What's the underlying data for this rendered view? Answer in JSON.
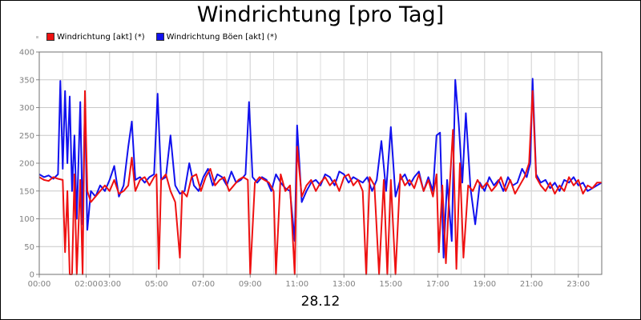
{
  "chart_data": {
    "type": "line",
    "title": "Windrichtung [pro Tag]",
    "xlabel": "28.12",
    "ylabel": "",
    "ylim": [
      0,
      400
    ],
    "y_ticks": [
      "0",
      "50",
      "100",
      "150",
      "200",
      "250",
      "300",
      "350",
      "400"
    ],
    "x_ticks": [
      "00:00",
      "02:00",
      "03:00",
      "05:00",
      "07:00",
      "09:00",
      "11:00",
      "13:00",
      "15:00",
      "17:00",
      "19:00",
      "21:00",
      "23:00"
    ],
    "grid": true,
    "legend_position": "top-left",
    "series": [
      {
        "name": "Windrichtung [akt] (*)",
        "color": "#ee1111",
        "points": [
          [
            0.0,
            175
          ],
          [
            0.2,
            170
          ],
          [
            0.4,
            168
          ],
          [
            0.6,
            175
          ],
          [
            0.8,
            172
          ],
          [
            1.0,
            170
          ],
          [
            1.1,
            40
          ],
          [
            1.2,
            150
          ],
          [
            1.3,
            0
          ],
          [
            1.4,
            0
          ],
          [
            1.5,
            180
          ],
          [
            1.6,
            0
          ],
          [
            1.75,
            170
          ],
          [
            1.85,
            0
          ],
          [
            1.95,
            330
          ],
          [
            2.05,
            150
          ],
          [
            2.2,
            130
          ],
          [
            2.4,
            140
          ],
          [
            2.6,
            150
          ],
          [
            2.8,
            160
          ],
          [
            3.0,
            150
          ],
          [
            3.2,
            170
          ],
          [
            3.4,
            145
          ],
          [
            3.6,
            150
          ],
          [
            3.8,
            160
          ],
          [
            3.95,
            210
          ],
          [
            4.1,
            150
          ],
          [
            4.3,
            170
          ],
          [
            4.5,
            175
          ],
          [
            4.7,
            160
          ],
          [
            4.9,
            175
          ],
          [
            5.0,
            180
          ],
          [
            5.1,
            10
          ],
          [
            5.2,
            170
          ],
          [
            5.4,
            180
          ],
          [
            5.6,
            150
          ],
          [
            5.8,
            130
          ],
          [
            6.0,
            30
          ],
          [
            6.1,
            150
          ],
          [
            6.3,
            140
          ],
          [
            6.5,
            175
          ],
          [
            6.7,
            180
          ],
          [
            6.9,
            150
          ],
          [
            7.1,
            175
          ],
          [
            7.3,
            190
          ],
          [
            7.5,
            160
          ],
          [
            7.7,
            170
          ],
          [
            7.9,
            175
          ],
          [
            8.1,
            150
          ],
          [
            8.3,
            160
          ],
          [
            8.5,
            170
          ],
          [
            8.7,
            175
          ],
          [
            8.9,
            170
          ],
          [
            9.0,
            0
          ],
          [
            9.2,
            165
          ],
          [
            9.4,
            175
          ],
          [
            9.6,
            170
          ],
          [
            9.8,
            165
          ],
          [
            10.0,
            150
          ],
          [
            10.1,
            0
          ],
          [
            10.3,
            180
          ],
          [
            10.5,
            150
          ],
          [
            10.7,
            160
          ],
          [
            10.9,
            0
          ],
          [
            11.0,
            230
          ],
          [
            11.2,
            140
          ],
          [
            11.4,
            160
          ],
          [
            11.6,
            170
          ],
          [
            11.8,
            150
          ],
          [
            12.0,
            165
          ],
          [
            12.2,
            175
          ],
          [
            12.4,
            160
          ],
          [
            12.6,
            170
          ],
          [
            12.8,
            150
          ],
          [
            13.0,
            175
          ],
          [
            13.2,
            180
          ],
          [
            13.4,
            160
          ],
          [
            13.6,
            170
          ],
          [
            13.8,
            150
          ],
          [
            13.95,
            0
          ],
          [
            14.1,
            175
          ],
          [
            14.3,
            160
          ],
          [
            14.5,
            0
          ],
          [
            14.7,
            170
          ],
          [
            14.85,
            0
          ],
          [
            15.0,
            170
          ],
          [
            15.2,
            0
          ],
          [
            15.4,
            180
          ],
          [
            15.6,
            160
          ],
          [
            15.8,
            170
          ],
          [
            16.0,
            155
          ],
          [
            16.2,
            180
          ],
          [
            16.4,
            150
          ],
          [
            16.6,
            170
          ],
          [
            16.8,
            140
          ],
          [
            16.95,
            180
          ],
          [
            17.05,
            40
          ],
          [
            17.2,
            160
          ],
          [
            17.35,
            20
          ],
          [
            17.5,
            150
          ],
          [
            17.65,
            260
          ],
          [
            17.8,
            10
          ],
          [
            17.95,
            200
          ],
          [
            18.1,
            30
          ],
          [
            18.3,
            160
          ],
          [
            18.5,
            150
          ],
          [
            18.7,
            170
          ],
          [
            18.9,
            155
          ],
          [
            19.1,
            165
          ],
          [
            19.3,
            150
          ],
          [
            19.5,
            160
          ],
          [
            19.7,
            175
          ],
          [
            19.9,
            150
          ],
          [
            20.1,
            170
          ],
          [
            20.3,
            145
          ],
          [
            20.5,
            160
          ],
          [
            20.7,
            175
          ],
          [
            20.9,
            200
          ],
          [
            21.05,
            330
          ],
          [
            21.2,
            175
          ],
          [
            21.4,
            160
          ],
          [
            21.6,
            150
          ],
          [
            21.8,
            165
          ],
          [
            22.0,
            145
          ],
          [
            22.2,
            160
          ],
          [
            22.4,
            150
          ],
          [
            22.6,
            175
          ],
          [
            22.8,
            160
          ],
          [
            23.0,
            170
          ],
          [
            23.2,
            145
          ],
          [
            23.4,
            160
          ],
          [
            23.6,
            155
          ],
          [
            23.8,
            165
          ],
          [
            24.0,
            165
          ]
        ]
      },
      {
        "name": "Windrichtung Böen [akt] (*)",
        "color": "#1111ee",
        "points": [
          [
            0.0,
            180
          ],
          [
            0.2,
            175
          ],
          [
            0.4,
            178
          ],
          [
            0.6,
            172
          ],
          [
            0.8,
            180
          ],
          [
            0.9,
            348
          ],
          [
            1.0,
            190
          ],
          [
            1.1,
            330
          ],
          [
            1.2,
            200
          ],
          [
            1.3,
            320
          ],
          [
            1.4,
            150
          ],
          [
            1.5,
            250
          ],
          [
            1.6,
            100
          ],
          [
            1.75,
            310
          ],
          [
            1.85,
            90
          ],
          [
            1.95,
            310
          ],
          [
            2.05,
            80
          ],
          [
            2.2,
            150
          ],
          [
            2.4,
            140
          ],
          [
            2.6,
            160
          ],
          [
            2.8,
            150
          ],
          [
            3.0,
            170
          ],
          [
            3.2,
            195
          ],
          [
            3.4,
            140
          ],
          [
            3.6,
            160
          ],
          [
            3.8,
            230
          ],
          [
            3.95,
            275
          ],
          [
            4.1,
            170
          ],
          [
            4.3,
            175
          ],
          [
            4.5,
            165
          ],
          [
            4.7,
            175
          ],
          [
            4.9,
            180
          ],
          [
            5.05,
            325
          ],
          [
            5.2,
            170
          ],
          [
            5.4,
            175
          ],
          [
            5.6,
            250
          ],
          [
            5.8,
            160
          ],
          [
            6.0,
            145
          ],
          [
            6.2,
            150
          ],
          [
            6.4,
            200
          ],
          [
            6.6,
            160
          ],
          [
            6.8,
            150
          ],
          [
            7.0,
            175
          ],
          [
            7.2,
            190
          ],
          [
            7.4,
            160
          ],
          [
            7.6,
            180
          ],
          [
            7.8,
            175
          ],
          [
            8.0,
            160
          ],
          [
            8.2,
            185
          ],
          [
            8.4,
            165
          ],
          [
            8.6,
            170
          ],
          [
            8.8,
            180
          ],
          [
            8.95,
            310
          ],
          [
            9.1,
            175
          ],
          [
            9.3,
            165
          ],
          [
            9.5,
            175
          ],
          [
            9.7,
            170
          ],
          [
            9.9,
            150
          ],
          [
            10.1,
            180
          ],
          [
            10.3,
            165
          ],
          [
            10.5,
            155
          ],
          [
            10.7,
            150
          ],
          [
            10.9,
            60
          ],
          [
            11.0,
            268
          ],
          [
            11.2,
            130
          ],
          [
            11.4,
            150
          ],
          [
            11.6,
            165
          ],
          [
            11.8,
            170
          ],
          [
            12.0,
            160
          ],
          [
            12.2,
            180
          ],
          [
            12.4,
            175
          ],
          [
            12.6,
            160
          ],
          [
            12.8,
            185
          ],
          [
            13.0,
            180
          ],
          [
            13.2,
            165
          ],
          [
            13.4,
            175
          ],
          [
            13.6,
            170
          ],
          [
            13.8,
            165
          ],
          [
            14.0,
            175
          ],
          [
            14.2,
            150
          ],
          [
            14.4,
            170
          ],
          [
            14.6,
            240
          ],
          [
            14.8,
            150
          ],
          [
            15.0,
            265
          ],
          [
            15.2,
            140
          ],
          [
            15.4,
            170
          ],
          [
            15.6,
            180
          ],
          [
            15.8,
            160
          ],
          [
            16.0,
            175
          ],
          [
            16.2,
            185
          ],
          [
            16.4,
            150
          ],
          [
            16.6,
            175
          ],
          [
            16.8,
            150
          ],
          [
            16.95,
            250
          ],
          [
            17.1,
            255
          ],
          [
            17.25,
            30
          ],
          [
            17.4,
            170
          ],
          [
            17.6,
            60
          ],
          [
            17.75,
            350
          ],
          [
            17.9,
            270
          ],
          [
            18.05,
            165
          ],
          [
            18.2,
            290
          ],
          [
            18.4,
            155
          ],
          [
            18.6,
            90
          ],
          [
            18.8,
            165
          ],
          [
            19.0,
            150
          ],
          [
            19.2,
            175
          ],
          [
            19.4,
            160
          ],
          [
            19.6,
            170
          ],
          [
            19.8,
            150
          ],
          [
            20.0,
            175
          ],
          [
            20.2,
            160
          ],
          [
            20.4,
            165
          ],
          [
            20.6,
            190
          ],
          [
            20.8,
            175
          ],
          [
            20.95,
            200
          ],
          [
            21.05,
            352
          ],
          [
            21.2,
            180
          ],
          [
            21.4,
            165
          ],
          [
            21.6,
            170
          ],
          [
            21.8,
            155
          ],
          [
            22.0,
            165
          ],
          [
            22.2,
            150
          ],
          [
            22.4,
            170
          ],
          [
            22.6,
            165
          ],
          [
            22.8,
            175
          ],
          [
            23.0,
            160
          ],
          [
            23.2,
            165
          ],
          [
            23.4,
            150
          ],
          [
            23.6,
            155
          ],
          [
            23.8,
            160
          ],
          [
            24.0,
            165
          ]
        ]
      }
    ]
  }
}
